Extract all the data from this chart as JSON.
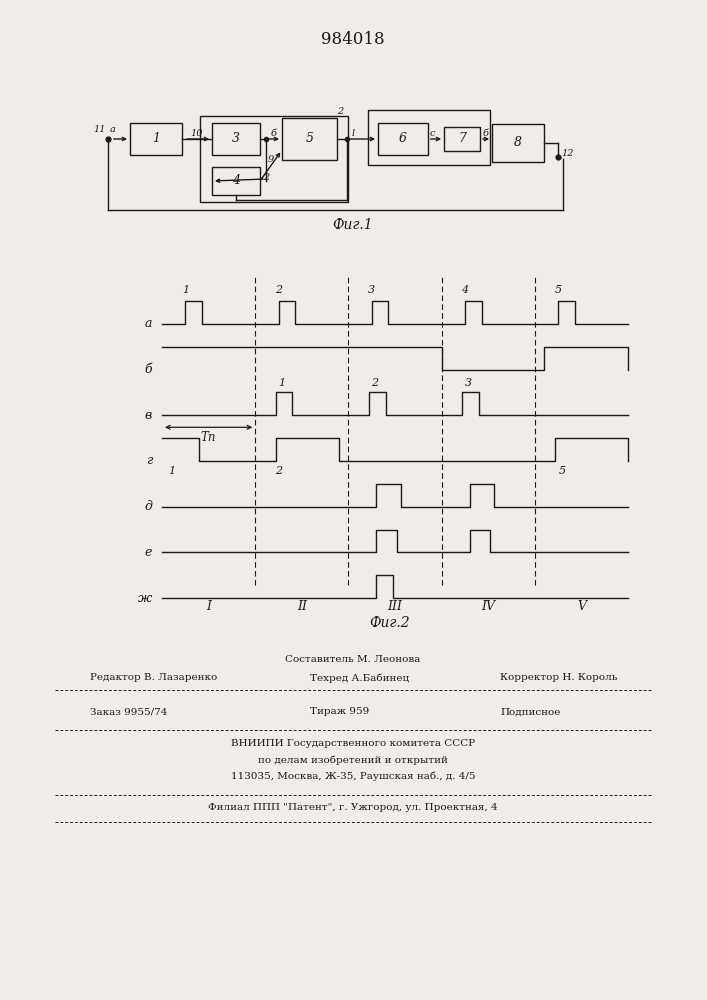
{
  "title": "984018",
  "fig1_caption": "Фиг.1",
  "fig2_caption": "Фиг.2",
  "background_color": "#f0ede8",
  "line_color": "#1a1a1a",
  "waveform_labels": [
    "a",
    "б",
    "в",
    "г",
    "д",
    "е",
    "ж"
  ],
  "period_labels": [
    "I",
    "II",
    "III",
    "IV",
    "V"
  ],
  "Tp_label": "Tп"
}
